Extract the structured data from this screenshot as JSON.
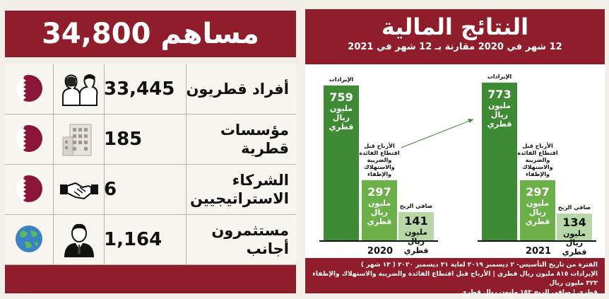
{
  "shareholders": {
    "total_label": "34,800 مساهم",
    "rows": [
      {
        "label": "أفراد قطريون",
        "value": "33,445",
        "icon": "people-icon",
        "flag": "qatar-flag-icon"
      },
      {
        "label": "مؤسسات قطرية",
        "value": "185",
        "icon": "building-icon",
        "flag": "qatar-flag-icon"
      },
      {
        "label": "الشركاء الاستراتيجيين",
        "value": "6",
        "icon": "handshake-icon",
        "flag": "qatar-flag-icon"
      },
      {
        "label": "مستثمرون أجانب",
        "value": "1,164",
        "icon": "businessman-icon",
        "flag": "globe-icon"
      }
    ]
  },
  "financial": {
    "title": "النتائج المالية",
    "subtitle": "12 شهر في 2020 مقارنة بـ 12 شهر في 2021",
    "footer_lines": [
      "الفترة من تاريخ التأسيس- ٢ ديسمبر ٢٠١٩ لغاية ٣١ ديسمبر ٢٠٢٠ ( ١٣ شهر )",
      "الإيرادات ٨١٥ مليون ريال قطري | الأرباح قبل اقتطاع الفائدة والضريبة والاستهلاك والإطفاء ٣٢٣ مليون ريال",
      "قطري | صافي الربح ١٥٢ مليون ريال قطري"
    ]
  },
  "chart_data": {
    "type": "bar",
    "categories": [
      "2020",
      "2021"
    ],
    "series": [
      {
        "name": "الإيرادات",
        "values": [
          759,
          773
        ],
        "value_labels": [
          "759 مليون ريال قطري",
          "773 مليون ريال قطري"
        ],
        "color": "#3f8a34"
      },
      {
        "name": "الأرباح قبل اقتطاع الفائدة والضريبة والاستهلاك والإطفاء",
        "values": [
          297,
          297
        ],
        "value_labels": [
          "297 مليون ريال قطري",
          "297 مليون ريال قطري"
        ],
        "color": "#6cb04a"
      },
      {
        "name": "صافي الربح",
        "values": [
          141,
          134
        ],
        "value_labels": [
          "141 مليون ريال قطري",
          "134 مليون ريال قطري"
        ],
        "color": "#b7d7a8"
      }
    ],
    "title": "النتائج المالية",
    "subtitle": "12 شهر في 2020 مقارنة بـ 12 شهر في 2021",
    "ylim": [
      0,
      800
    ],
    "grid": false,
    "legend": "none"
  }
}
